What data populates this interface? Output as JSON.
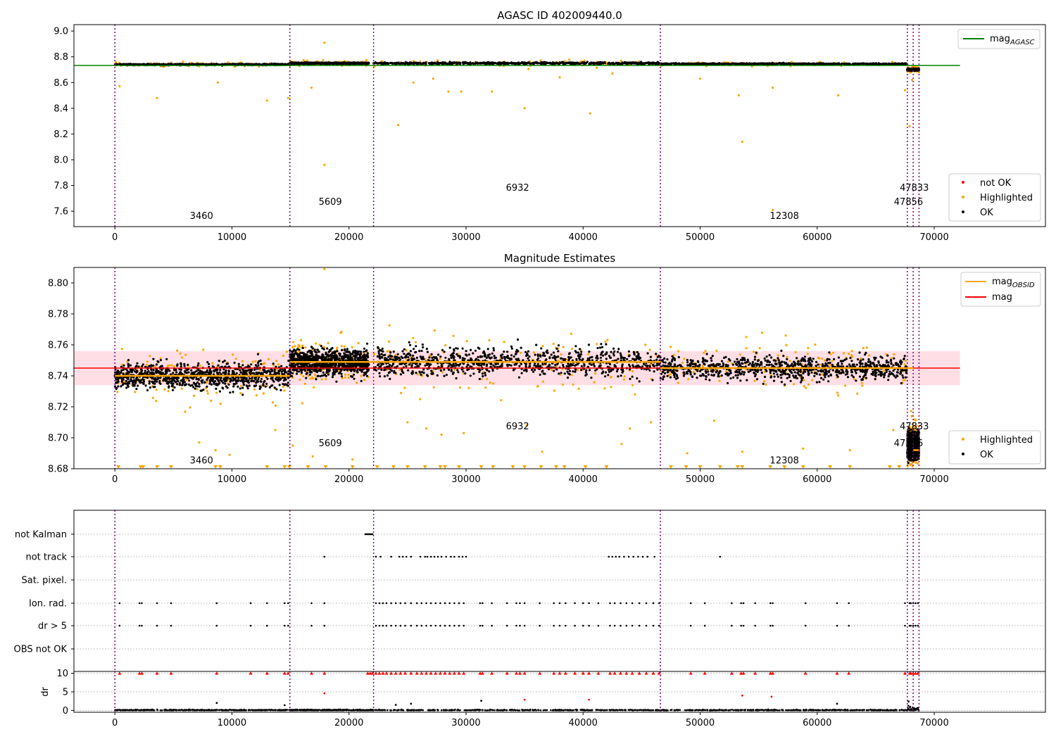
{
  "colors": {
    "ok": "#000000",
    "highlighted": "#ffa500",
    "not_ok": "#ff0000",
    "agasc_line": "#008000",
    "mag_line": "#ff0000",
    "mag_band": "#ffc0cb",
    "obsid_line": "#ffa500",
    "obs_boundary": "#800080",
    "grid": "#b0b0b0"
  },
  "obs_boundaries": [
    0,
    14950,
    22100,
    46600,
    67700,
    68200,
    68700
  ],
  "chart_data": [
    {
      "type": "scatter",
      "title": "AGASC ID 402009440.0",
      "xlabel": "",
      "ylabel": "",
      "xlim": [
        -3500,
        79500
      ],
      "ylim": [
        7.48,
        9.05
      ],
      "xticks": [
        0,
        10000,
        20000,
        30000,
        40000,
        50000,
        60000,
        70000
      ],
      "yticks": [
        7.6,
        7.8,
        8.0,
        8.2,
        8.4,
        8.6,
        8.8,
        9.0
      ],
      "ytick_labels": [
        "7.6",
        "7.8",
        "8.0",
        "8.2",
        "8.4",
        "8.6",
        "8.8",
        "9.0"
      ],
      "legend": {
        "upper": {
          "position": "upper-right",
          "entries": [
            {
              "label": "mag",
              "sub": "AGASC",
              "kind": "line",
              "color": "#008000"
            }
          ]
        },
        "lower": {
          "position": "lower-right",
          "entries": [
            {
              "label": "not OK",
              "kind": "marker",
              "color": "#ff0000"
            },
            {
              "label": "Highlighted",
              "kind": "marker",
              "color": "#ffa500"
            },
            {
              "label": "OK",
              "kind": "marker",
              "color": "#000000"
            }
          ]
        }
      },
      "agasc_mag": 8.733,
      "agasc_range": [
        -3500,
        72200
      ],
      "obs_segments": [
        {
          "x": [
            0,
            14950
          ],
          "center": 8.74,
          "spread": 0.008
        },
        {
          "x": [
            14950,
            21700
          ],
          "center": 8.75,
          "spread": 0.009
        },
        {
          "x": [
            22100,
            46600
          ],
          "center": 8.75,
          "spread": 0.012
        },
        {
          "x": [
            46600,
            67700
          ],
          "center": 8.745,
          "spread": 0.008
        },
        {
          "x": [
            67700,
            68700
          ],
          "center": 8.7,
          "spread": 0.01
        }
      ],
      "highlighted_points": [
        [
          400,
          8.57
        ],
        [
          3600,
          8.48
        ],
        [
          8800,
          8.6
        ],
        [
          13000,
          8.46
        ],
        [
          14800,
          8.48
        ],
        [
          16800,
          8.56
        ],
        [
          17900,
          7.96
        ],
        [
          17900,
          8.91
        ],
        [
          24200,
          8.27
        ],
        [
          25500,
          8.6
        ],
        [
          27200,
          8.63
        ],
        [
          28500,
          8.53
        ],
        [
          29600,
          8.53
        ],
        [
          32200,
          8.53
        ],
        [
          35000,
          8.4
        ],
        [
          38000,
          8.64
        ],
        [
          40600,
          8.36
        ],
        [
          42500,
          8.67
        ],
        [
          50000,
          8.63
        ],
        [
          53300,
          8.5
        ],
        [
          53600,
          8.14
        ],
        [
          56200,
          8.56
        ],
        [
          56200,
          7.61
        ],
        [
          61800,
          8.5
        ],
        [
          67500,
          8.54
        ],
        [
          67900,
          8.26
        ],
        [
          68100,
          8.62
        ]
      ],
      "obsid_labels": [
        {
          "text": "3460",
          "x": 7400,
          "y": 7.54
        },
        {
          "text": "5609",
          "x": 18400,
          "y": 7.65
        },
        {
          "text": "6932",
          "x": 34400,
          "y": 7.76
        },
        {
          "text": "12308",
          "x": 57200,
          "y": 7.54
        },
        {
          "text": "47856",
          "x": 67800,
          "y": 7.65
        },
        {
          "text": "47833",
          "x": 68300,
          "y": 7.76
        }
      ]
    },
    {
      "type": "scatter",
      "title": "Magnitude Estimates",
      "xlabel": "",
      "ylabel": "",
      "xlim": [
        -3500,
        79500
      ],
      "ylim": [
        8.68,
        8.81
      ],
      "xticks": [
        0,
        10000,
        20000,
        30000,
        40000,
        50000,
        60000,
        70000
      ],
      "yticks": [
        8.68,
        8.7,
        8.72,
        8.74,
        8.76,
        8.78,
        8.8
      ],
      "ytick_labels": [
        "8.68",
        "8.70",
        "8.72",
        "8.74",
        "8.76",
        "8.78",
        "8.80"
      ],
      "legend": {
        "upper": {
          "position": "upper-right",
          "entries": [
            {
              "label": "mag",
              "sub": "OBSID",
              "kind": "line",
              "color": "#ffa500"
            },
            {
              "label": "mag",
              "sub": "",
              "kind": "line",
              "color": "#ff0000"
            }
          ]
        },
        "lower": {
          "position": "lower-right",
          "entries": [
            {
              "label": "Highlighted",
              "kind": "marker",
              "color": "#ffa500"
            },
            {
              "label": "OK",
              "kind": "marker",
              "color": "#000000"
            }
          ]
        }
      },
      "mag": 8.745,
      "mag_band": [
        8.734,
        8.756
      ],
      "mag_range": [
        -3500,
        72200
      ],
      "obsid_mags": [
        {
          "x": [
            0,
            14950
          ],
          "mag": 8.74
        },
        {
          "x": [
            14950,
            22100
          ],
          "mag": 8.749
        },
        {
          "x": [
            22100,
            46600
          ],
          "mag": 8.749
        },
        {
          "x": [
            46600,
            67700
          ],
          "mag": 8.745
        },
        {
          "x": [
            67700,
            68200
          ],
          "mag": 8.745
        },
        {
          "x": [
            68200,
            68700
          ],
          "mag": 8.692
        }
      ],
      "obs_segments": [
        {
          "x": [
            0,
            14950
          ],
          "center": 8.74,
          "spread": 0.01
        },
        {
          "x": [
            14950,
            21700
          ],
          "center": 8.749,
          "spread": 0.01
        },
        {
          "x": [
            22100,
            46600
          ],
          "center": 8.749,
          "spread": 0.011
        },
        {
          "x": [
            46600,
            67700
          ],
          "center": 8.745,
          "spread": 0.009
        },
        {
          "x": [
            67700,
            68700
          ],
          "center": 8.695,
          "spread": 0.01
        }
      ],
      "highlighted_points": [
        [
          7200,
          8.697
        ],
        [
          8600,
          8.692
        ],
        [
          9800,
          8.689
        ],
        [
          13700,
          8.705
        ],
        [
          15200,
          8.695
        ],
        [
          16900,
          8.688
        ],
        [
          17900,
          8.809
        ],
        [
          20300,
          8.686
        ],
        [
          25000,
          8.71
        ],
        [
          26600,
          8.706
        ],
        [
          27900,
          8.702
        ],
        [
          29800,
          8.703
        ],
        [
          35200,
          8.708
        ],
        [
          36500,
          8.691
        ],
        [
          43300,
          8.696
        ],
        [
          44000,
          8.706
        ],
        [
          45800,
          8.71
        ],
        [
          48900,
          8.69
        ],
        [
          51200,
          8.711
        ],
        [
          53600,
          8.691
        ],
        [
          58800,
          8.693
        ],
        [
          62800,
          8.692
        ],
        [
          66500,
          8.705
        ]
      ],
      "clipped_markers_x": [
        300,
        2200,
        2400,
        3600,
        4800,
        8600,
        9000,
        13000,
        14500,
        14900,
        16500,
        18000,
        20300,
        22400,
        23800,
        25000,
        26500,
        27800,
        28200,
        29400,
        31300,
        32300,
        34000,
        35000,
        36400,
        37700,
        38400,
        40200,
        42000,
        47500,
        48800,
        50000,
        51700,
        53200,
        53600,
        56000,
        57200,
        58800,
        61100,
        62800,
        66200,
        67000
      ],
      "obsid_labels": [
        {
          "text": "3460",
          "x": 7400,
          "y": 8.6835
        },
        {
          "text": "5609",
          "x": 18400,
          "y": 8.6945
        },
        {
          "text": "6932",
          "x": 34400,
          "y": 8.7055
        },
        {
          "text": "12308",
          "x": 57200,
          "y": 8.6835
        },
        {
          "text": "47856",
          "x": 67800,
          "y": 8.6945
        },
        {
          "text": "47833",
          "x": 68300,
          "y": 8.7055
        }
      ]
    },
    {
      "type": "scatter",
      "title": "",
      "xlabel": "",
      "ylabel": "",
      "xlim": [
        -3500,
        79500
      ],
      "categories": [
        "not Kalman",
        "not track",
        "Sat. pixel.",
        "Ion. rad.",
        "dr > 5",
        "OBS not OK"
      ],
      "flag_points": {
        "not Kalman": [
          21400,
          21500,
          21600,
          21700,
          21800,
          21900,
          22000
        ],
        "not track": [
          17900,
          22300,
          22700,
          23600,
          24300,
          24600,
          24900,
          25300,
          26100,
          26500,
          26700,
          27000,
          27300,
          27600,
          27900,
          28300,
          28700,
          29000,
          29400,
          29700,
          30000,
          42200,
          42500,
          42800,
          43100,
          43500,
          43900,
          44300,
          44700,
          45100,
          45500,
          46100,
          51700
        ],
        "Sat. pixel.": [],
        "Ion. rad.": [
          400,
          2100,
          2300,
          3600,
          4800,
          8700,
          11600,
          13000,
          14500,
          14800,
          16800,
          17900,
          22300,
          22600,
          22900,
          23200,
          23600,
          24000,
          24400,
          24800,
          25300,
          25800,
          26200,
          26600,
          27000,
          27400,
          27800,
          28200,
          28600,
          29000,
          29400,
          29800,
          31200,
          31400,
          32200,
          33500,
          34300,
          34600,
          35000,
          36300,
          37500,
          38000,
          38500,
          39300,
          40000,
          40500,
          41300,
          42300,
          42700,
          43200,
          43700,
          44200,
          44800,
          45400,
          46000,
          46500,
          49200,
          50400,
          52700,
          53500,
          53700,
          54700,
          56000,
          56200,
          59000,
          61700,
          62700,
          67500,
          67900,
          68000,
          68200,
          68400,
          68600
        ],
        "dr > 5": [
          400,
          2100,
          2300,
          3600,
          4800,
          8700,
          11600,
          13000,
          14500,
          14800,
          16800,
          17900,
          22300,
          22600,
          22900,
          23200,
          23600,
          24000,
          24400,
          24800,
          25300,
          25800,
          26200,
          26600,
          27000,
          27400,
          27800,
          28200,
          28600,
          29000,
          29400,
          29800,
          31200,
          31400,
          32200,
          33500,
          34300,
          34600,
          35000,
          36300,
          37500,
          38000,
          38500,
          39300,
          40000,
          40500,
          41300,
          42300,
          42700,
          43200,
          43700,
          44200,
          44800,
          45400,
          46000,
          46500,
          49200,
          50400,
          52700,
          53500,
          53700,
          54700,
          56000,
          56200,
          59000,
          61700,
          62700,
          67500,
          67900,
          68000,
          68200,
          68400,
          68600
        ],
        "OBS not OK": []
      }
    },
    {
      "type": "scatter",
      "title": "",
      "xlabel": "",
      "ylabel": "dr",
      "xlim": [
        -3500,
        79500
      ],
      "ylim": [
        -0.5,
        10.5
      ],
      "xticks": [
        0,
        10000,
        20000,
        30000,
        40000,
        50000,
        60000,
        70000
      ],
      "yticks": [
        0,
        5,
        10
      ],
      "ytick_labels": [
        "0",
        "5",
        "10"
      ],
      "clip_value": 10,
      "clipped_x": [
        400,
        2100,
        2300,
        3600,
        4800,
        8700,
        11600,
        13000,
        14500,
        14800,
        16800,
        17900,
        21600,
        21800,
        22000,
        22300,
        22600,
        22900,
        23200,
        23600,
        24000,
        24400,
        24800,
        25300,
        25800,
        26200,
        26600,
        27000,
        27400,
        27800,
        28200,
        28600,
        29000,
        29400,
        29800,
        31200,
        31400,
        32200,
        33500,
        34300,
        34600,
        35000,
        36300,
        37500,
        38000,
        38500,
        39300,
        40000,
        40500,
        41300,
        42300,
        42700,
        43200,
        43700,
        44200,
        44800,
        45400,
        46000,
        46500,
        49200,
        50400,
        52700,
        53500,
        53700,
        54700,
        56000,
        56200,
        59000,
        61700,
        62700,
        67500,
        67900,
        68000,
        68200,
        68400,
        68600
      ],
      "outliers": [
        {
          "x": 8700,
          "y": 2.0,
          "color": "#000000"
        },
        {
          "x": 14500,
          "y": 1.4,
          "color": "#000000"
        },
        {
          "x": 17900,
          "y": 4.6,
          "color": "#ff0000"
        },
        {
          "x": 24000,
          "y": 1.5,
          "color": "#000000"
        },
        {
          "x": 25300,
          "y": 1.8,
          "color": "#000000"
        },
        {
          "x": 31300,
          "y": 2.6,
          "color": "#000000"
        },
        {
          "x": 35000,
          "y": 2.9,
          "color": "#ff0000"
        },
        {
          "x": 40500,
          "y": 2.9,
          "color": "#ff0000"
        },
        {
          "x": 53600,
          "y": 4.0,
          "color": "#ff0000"
        },
        {
          "x": 56100,
          "y": 3.7,
          "color": "#ff0000"
        },
        {
          "x": 61700,
          "y": 1.8,
          "color": "#000000"
        },
        {
          "x": 67800,
          "y": 2.4,
          "color": "#000000"
        }
      ]
    }
  ]
}
